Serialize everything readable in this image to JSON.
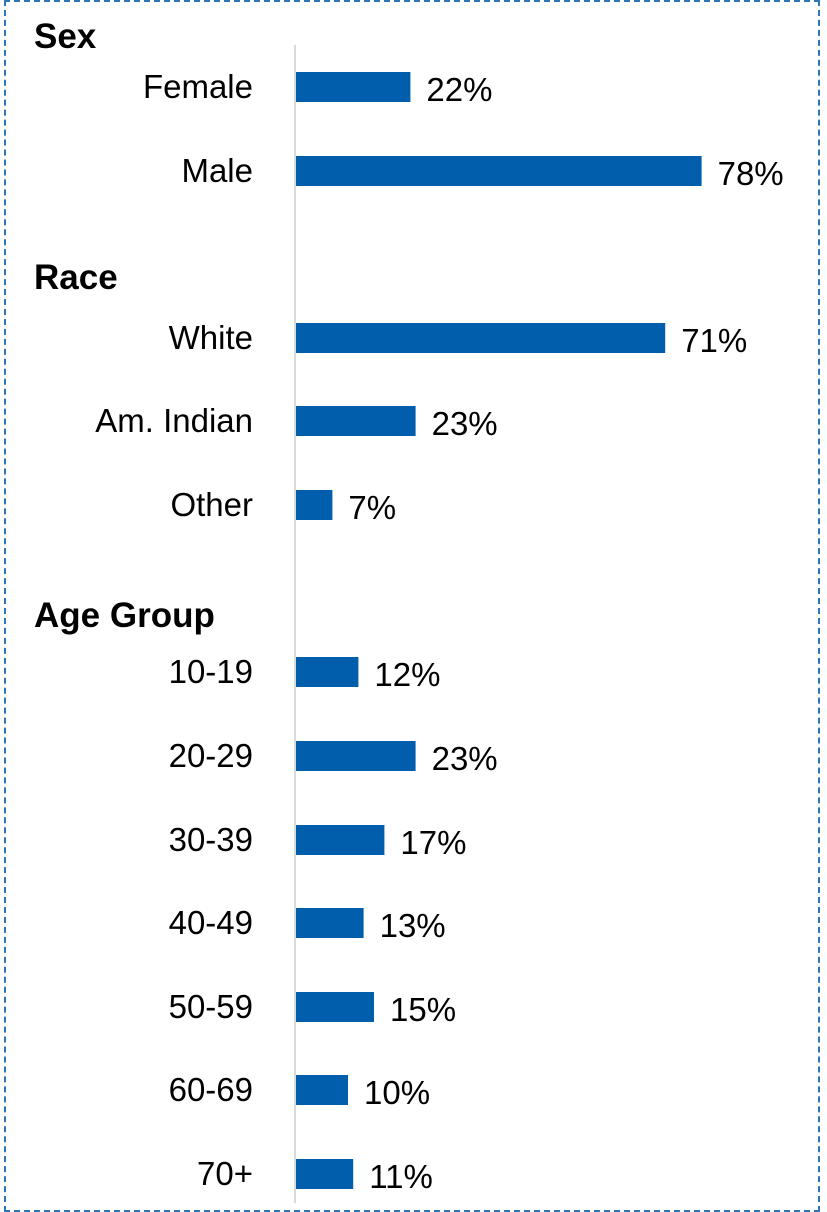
{
  "chart_data": {
    "type": "bar",
    "orientation": "horizontal",
    "value_format": "percent",
    "bar_color": "#005eac",
    "axis_color": "#d9d9d9",
    "border_color": "#2e75b6",
    "groups": [
      {
        "title": "Sex",
        "categories": [
          "Female",
          "Male"
        ],
        "values": [
          22,
          78
        ],
        "labels": [
          "22%",
          "78%"
        ]
      },
      {
        "title": "Race",
        "categories": [
          "White",
          "Am. Indian",
          "Other"
        ],
        "values": [
          71,
          23,
          7
        ],
        "labels": [
          "71%",
          "23%",
          "7%"
        ]
      },
      {
        "title": "Age Group",
        "categories": [
          "10-19",
          "20-29",
          "30-39",
          "40-49",
          "50-59",
          "60-69",
          "70+"
        ],
        "values": [
          12,
          23,
          17,
          13,
          15,
          10,
          11
        ],
        "labels": [
          "12%",
          "23%",
          "17%",
          "13%",
          "15%",
          "10%",
          "11%"
        ]
      }
    ]
  }
}
